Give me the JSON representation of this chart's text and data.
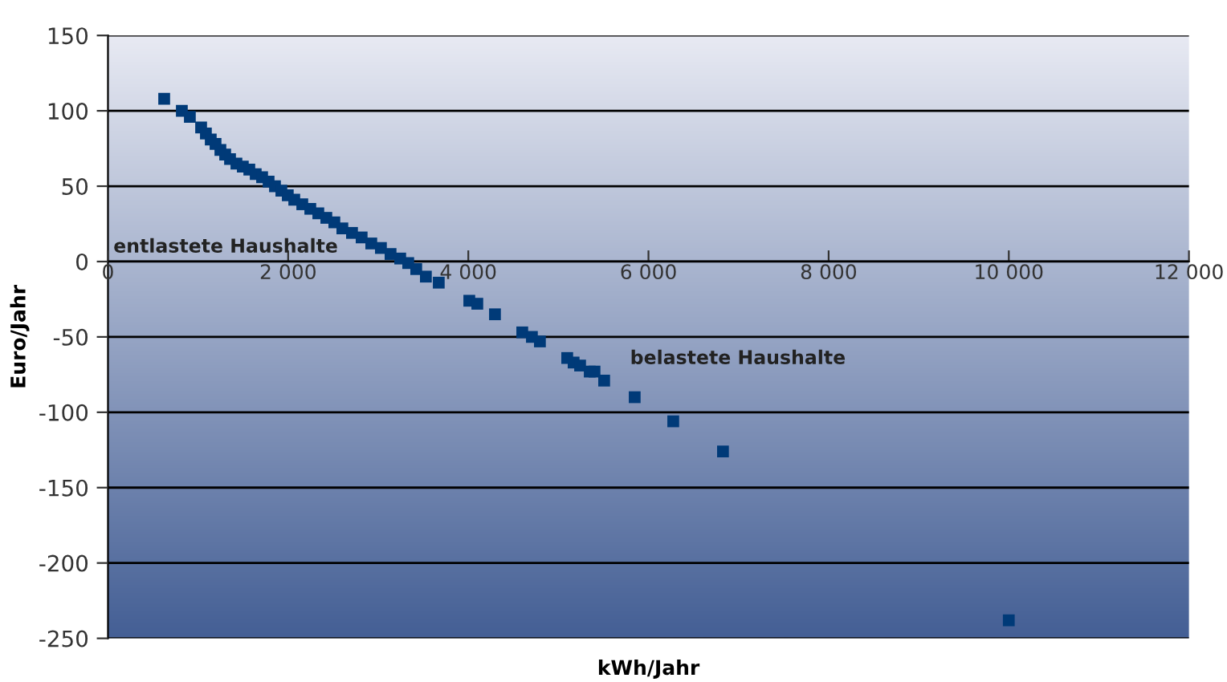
{
  "chart_data": {
    "type": "scatter",
    "xlabel": "kWh/Jahr",
    "ylabel": "Euro/Jahr",
    "x": [
      624,
      820,
      909,
      1034,
      1087,
      1141,
      1194,
      1248,
      1301,
      1355,
      1426,
      1497,
      1569,
      1640,
      1711,
      1783,
      1854,
      1925,
      1996,
      2068,
      2157,
      2246,
      2335,
      2424,
      2513,
      2602,
      2709,
      2816,
      2923,
      3030,
      3137,
      3244,
      3333,
      3422,
      3529,
      3672,
      4011,
      4100,
      4296,
      4599,
      4706,
      4795,
      5098,
      5169,
      5241,
      5348,
      5401,
      5508,
      5847,
      6275,
      6827,
      10000
    ],
    "series": [
      {
        "color": "#003a78",
        "values": [
          108,
          100,
          96,
          89,
          85,
          81,
          78,
          74,
          71,
          68,
          65,
          63,
          61,
          58,
          56,
          53,
          50,
          47,
          44,
          41,
          38,
          35,
          32,
          29,
          26,
          22,
          19,
          16,
          12,
          9,
          5,
          2,
          -1,
          -5,
          -10,
          -14,
          -26,
          -28,
          -35,
          -47,
          -50,
          -53,
          -64,
          -67,
          -69,
          -73,
          -73,
          -79,
          -90,
          -106,
          -126,
          -238
        ]
      }
    ],
    "marker": "square",
    "xlim": [
      0,
      12000
    ],
    "ylim": [
      -250,
      150
    ],
    "xticks": [
      0,
      {
        "value": 2000,
        "label": "2 000"
      },
      {
        "value": 4000,
        "label": "4 000"
      },
      {
        "value": 6000,
        "label": "6 000"
      },
      {
        "value": 8000,
        "label": "8 000"
      },
      {
        "value": 10000,
        "label": "10 000"
      },
      {
        "value": 12000,
        "label": "12 000"
      }
    ],
    "yticks": [
      -250,
      -200,
      -150,
      -100,
      -50,
      0,
      50,
      100,
      150
    ],
    "grid": "y",
    "annotations": [
      "entlastete Haushalte",
      "belastete Haushalte"
    ]
  }
}
